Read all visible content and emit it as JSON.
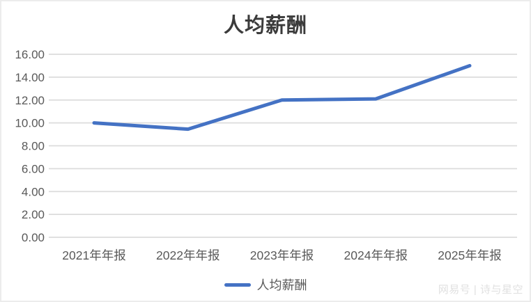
{
  "chart_data": {
    "type": "line",
    "title": "人均薪酬",
    "categories": [
      "2021年年报",
      "2022年年报",
      "2023年年报",
      "2024年年报",
      "2025年年报"
    ],
    "series": [
      {
        "name": "人均薪酬",
        "color": "#4472C4",
        "values": [
          10.0,
          9.45,
          12.0,
          12.1,
          15.0
        ]
      }
    ],
    "xlabel": "",
    "ylabel": "",
    "ylim": [
      0,
      16
    ],
    "ytick_step": 2,
    "ytick_labels_top_to_bottom": [
      "16.00",
      "14.00",
      "12.00",
      "10.00",
      "8.00",
      "6.00",
      "4.00",
      "2.00",
      "0.00"
    ],
    "grid": true,
    "legend_position": "bottom"
  },
  "watermark": {
    "text": "网易号 | 诗与星空"
  },
  "colors": {
    "line": "#4472C4",
    "grid": "#DCDCDC",
    "title-text": "#3B3B3B",
    "axis-text": "#595959",
    "watermark-text": "#E0E0E0",
    "background": "#FFFFFF"
  }
}
